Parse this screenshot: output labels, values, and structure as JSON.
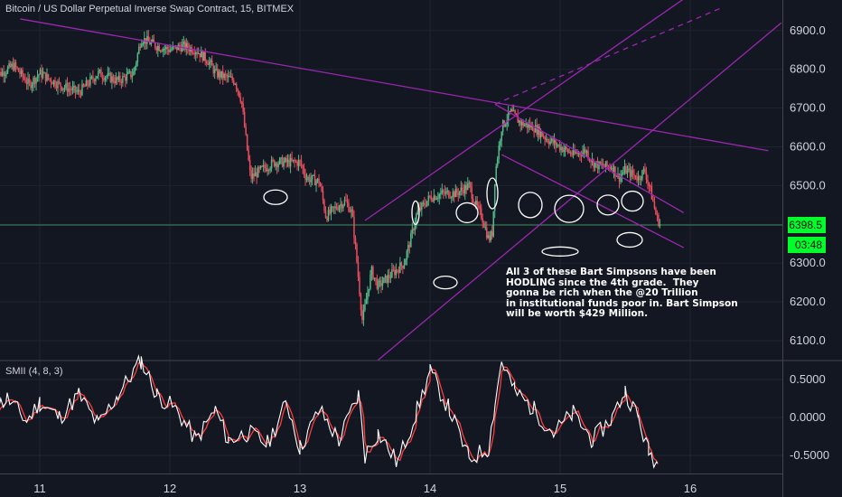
{
  "header": {
    "title": "Bitcoin / US Dollar Perpetual Inverse Swap Contract, 15, BITMEX"
  },
  "indicator": {
    "title": "SMII (4, 8, 3)"
  },
  "annotation": {
    "lines": [
      "All 3 of these Bart Simpsons have been",
      "HODLING since the 4th grade.  They",
      "gonna be rich when the @20 Trillion",
      "in institutional funds poor in. Bart Simpson",
      "will be worth $429 Million."
    ]
  },
  "price_tags": {
    "last": "6398.5",
    "countdown": "03:48"
  },
  "colors": {
    "bg": "#131722",
    "up": "#53b987",
    "down": "#eb4d5c",
    "trend": "#9c27b0",
    "tag": "#00ff2a",
    "smii_fast": "#ffffff",
    "smii_slow": "#ff3b3b"
  },
  "chart_data": [
    {
      "type": "candlestick",
      "title": "Bitcoin / US Dollar Perpetual Inverse Swap Contract, 15, BITMEX",
      "x_ticks": [
        "11",
        "12",
        "13",
        "14",
        "15",
        "16"
      ],
      "y_ticks": [
        "6100.0",
        "6200.0",
        "6300.0",
        "6400.0",
        "6500.0",
        "6600.0",
        "6700.0",
        "6800.0",
        "6900.0"
      ],
      "ylim": [
        6060,
        6960
      ],
      "last_price": 6398.5,
      "price_path": [
        [
          10.65,
          6780
        ],
        [
          10.8,
          6810
        ],
        [
          10.92,
          6760
        ],
        [
          11.0,
          6790
        ],
        [
          11.15,
          6760
        ],
        [
          11.3,
          6740
        ],
        [
          11.45,
          6790
        ],
        [
          11.6,
          6770
        ],
        [
          11.72,
          6790
        ],
        [
          11.78,
          6880
        ],
        [
          11.9,
          6860
        ],
        [
          12.0,
          6850
        ],
        [
          12.1,
          6860
        ],
        [
          12.2,
          6850
        ],
        [
          12.3,
          6820
        ],
        [
          12.35,
          6790
        ],
        [
          12.5,
          6770
        ],
        [
          12.55,
          6720
        ],
        [
          12.62,
          6520
        ],
        [
          12.7,
          6540
        ],
        [
          12.8,
          6560
        ],
        [
          12.9,
          6560
        ],
        [
          13.0,
          6560
        ],
        [
          13.05,
          6520
        ],
        [
          13.15,
          6510
        ],
        [
          13.2,
          6420
        ],
        [
          13.3,
          6450
        ],
        [
          13.35,
          6460
        ],
        [
          13.4,
          6430
        ],
        [
          13.43,
          6330
        ],
        [
          13.48,
          6150
        ],
        [
          13.55,
          6280
        ],
        [
          13.6,
          6240
        ],
        [
          13.7,
          6270
        ],
        [
          13.8,
          6300
        ],
        [
          13.85,
          6360
        ],
        [
          13.9,
          6430
        ],
        [
          14.0,
          6470
        ],
        [
          14.1,
          6480
        ],
        [
          14.2,
          6480
        ],
        [
          14.3,
          6500
        ],
        [
          14.35,
          6450
        ],
        [
          14.4,
          6420
        ],
        [
          14.45,
          6360
        ],
        [
          14.48,
          6380
        ],
        [
          14.5,
          6530
        ],
        [
          14.55,
          6650
        ],
        [
          14.62,
          6690
        ],
        [
          14.7,
          6660
        ],
        [
          14.8,
          6650
        ],
        [
          14.9,
          6620
        ],
        [
          15.0,
          6600
        ],
        [
          15.1,
          6580
        ],
        [
          15.2,
          6590
        ],
        [
          15.25,
          6560
        ],
        [
          15.3,
          6550
        ],
        [
          15.4,
          6550
        ],
        [
          15.45,
          6520
        ],
        [
          15.5,
          6540
        ],
        [
          15.6,
          6520
        ],
        [
          15.65,
          6540
        ],
        [
          15.7,
          6480
        ],
        [
          15.74,
          6420
        ],
        [
          15.77,
          6398.5
        ]
      ],
      "trend_lines": [
        {
          "name": "descending resistance",
          "from": [
            10.85,
            6930
          ],
          "to": [
            16.6,
            6590
          ]
        },
        {
          "name": "channel upper",
          "from": [
            13.5,
            6410
          ],
          "to": [
            16.2,
            7040
          ]
        },
        {
          "name": "channel mid (dashed)",
          "from": [
            14.5,
            6710
          ],
          "to": [
            16.25,
            6960
          ]
        },
        {
          "name": "channel lower",
          "from": [
            13.6,
            6050
          ],
          "to": [
            16.7,
            6920
          ]
        },
        {
          "name": "short channel top",
          "from": [
            14.5,
            6710
          ],
          "to": [
            15.95,
            6430
          ]
        },
        {
          "name": "short channel bottom",
          "from": [
            14.55,
            6580
          ],
          "to": [
            15.95,
            6340
          ]
        }
      ]
    },
    {
      "type": "line",
      "title": "SMII (4, 8, 3)",
      "y_ticks": [
        "0.5000",
        "0.0000",
        "-0.5000"
      ],
      "ylim": [
        -0.85,
        0.85
      ],
      "series": [
        {
          "name": "SMII",
          "x": [
            10.6,
            10.75,
            10.9,
            11.0,
            11.15,
            11.3,
            11.45,
            11.6,
            11.78,
            11.9,
            12.05,
            12.2,
            12.35,
            12.45,
            12.6,
            12.75,
            12.9,
            13.0,
            13.15,
            13.3,
            13.45,
            13.5,
            13.6,
            13.75,
            13.9,
            14.0,
            14.15,
            14.3,
            14.45,
            14.5,
            14.55,
            14.65,
            14.8,
            14.95,
            15.1,
            15.25,
            15.4,
            15.5,
            15.6,
            15.68,
            15.75
          ],
          "values": [
            0.05,
            0.25,
            -0.05,
            0.2,
            0.0,
            0.3,
            -0.1,
            0.3,
            0.75,
            0.3,
            0.1,
            -0.3,
            0.1,
            -0.3,
            -0.2,
            -0.35,
            0.2,
            -0.4,
            0.1,
            -0.3,
            0.3,
            -0.5,
            -0.2,
            -0.6,
            0.1,
            0.6,
            0.1,
            -0.55,
            -0.4,
            0.2,
            0.75,
            0.35,
            0.1,
            -0.2,
            0.05,
            -0.3,
            0.0,
            0.35,
            0.0,
            -0.45,
            -0.6
          ]
        }
      ]
    }
  ]
}
